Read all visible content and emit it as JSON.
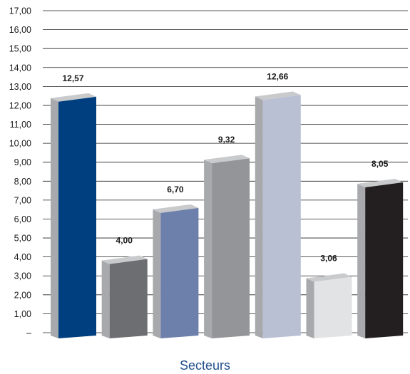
{
  "chart_data": {
    "type": "bar",
    "title": "",
    "xlabel": "Secteurs",
    "ylabel": "",
    "ylim": [
      0,
      17
    ],
    "y_ticks": [
      "–",
      "1,00",
      "2,00",
      "3,00",
      "4,00",
      "5,00",
      "6,00",
      "7,00",
      "8,00",
      "9,00",
      "10,00",
      "11,00",
      "12,00",
      "13,00",
      "14,00",
      "15,00",
      "16,00",
      "17,00"
    ],
    "grid": true,
    "legend": "none",
    "categories": [
      "",
      "",
      "",
      "",
      "",
      "",
      ""
    ],
    "values": [
      12.57,
      4.0,
      6.7,
      9.32,
      12.66,
      3.06,
      8.05
    ],
    "data_labels": [
      "12,57",
      "4,00",
      "6,70",
      "9,32",
      "12,66",
      "3,06",
      "8,05"
    ],
    "bar_colors": [
      "#003f7f",
      "#6d6e71",
      "#6d80ac",
      "#939598",
      "#b9c0d4",
      "#e2e3e4",
      "#231f20"
    ],
    "bar_3d": true,
    "colors": {
      "xlabel": "#1f4e8c",
      "grid": "#222222",
      "bar_side": "#a7a9ac",
      "bar_top": "#c9cacc"
    }
  }
}
